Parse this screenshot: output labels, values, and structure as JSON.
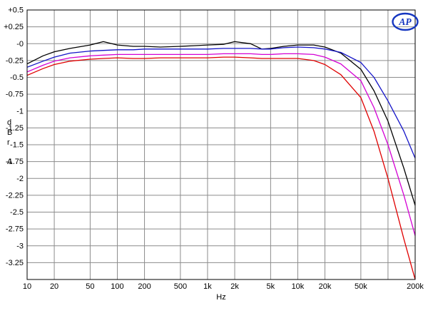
{
  "logo": {
    "text": "AP",
    "color": "#1536c0"
  },
  "chart_data": {
    "type": "line",
    "title": "",
    "xlabel": "Hz",
    "ylabel": "dBr A",
    "ylabel_stack": [
      "d",
      "B",
      "r",
      "A"
    ],
    "xscale": "log",
    "xlim": [
      10,
      200000
    ],
    "ylim": [
      -3.5,
      0.5
    ],
    "grid": true,
    "grid_color": "#8c8c8c",
    "frame_color": "#000000",
    "xticks": [
      {
        "f": 10,
        "label": "10"
      },
      {
        "f": 20,
        "label": "20"
      },
      {
        "f": 50,
        "label": "50"
      },
      {
        "f": 100,
        "label": "100"
      },
      {
        "f": 200,
        "label": "200"
      },
      {
        "f": 500,
        "label": "500"
      },
      {
        "f": 1000,
        "label": "1k"
      },
      {
        "f": 2000,
        "label": "2k"
      },
      {
        "f": 5000,
        "label": "5k"
      },
      {
        "f": 10000,
        "label": "10k"
      },
      {
        "f": 20000,
        "label": "20k"
      },
      {
        "f": 50000,
        "label": "50k"
      },
      {
        "f": 100000,
        "label": ""
      },
      {
        "f": 200000,
        "label": "200k"
      }
    ],
    "yticks": [
      {
        "v": 0.5,
        "label": "+0.5"
      },
      {
        "v": 0.25,
        "label": "+0.25"
      },
      {
        "v": 0,
        "label": "-0"
      },
      {
        "v": -0.25,
        "label": "-0.25"
      },
      {
        "v": -0.5,
        "label": "-0.5"
      },
      {
        "v": -0.75,
        "label": "-0.75"
      },
      {
        "v": -1,
        "label": "-1"
      },
      {
        "v": -1.25,
        "label": "-1.25"
      },
      {
        "v": -1.5,
        "label": "-1.5"
      },
      {
        "v": -1.75,
        "label": "-1.75"
      },
      {
        "v": -2,
        "label": "-2"
      },
      {
        "v": -2.25,
        "label": "-2.25"
      },
      {
        "v": -2.5,
        "label": "-2.5"
      },
      {
        "v": -2.75,
        "label": "-2.75"
      },
      {
        "v": -3,
        "label": "-3"
      },
      {
        "v": -3.25,
        "label": "-3.25"
      }
    ],
    "x": [
      10,
      15,
      20,
      30,
      50,
      70,
      100,
      150,
      200,
      300,
      500,
      700,
      1000,
      1500,
      2000,
      3000,
      4000,
      5000,
      7000,
      10000,
      15000,
      20000,
      30000,
      50000,
      70000,
      100000,
      150000,
      200000
    ],
    "series": [
      {
        "name": "black-trace",
        "color": "#000000",
        "values": [
          -0.3,
          -0.18,
          -0.12,
          -0.07,
          -0.02,
          0.03,
          -0.02,
          -0.04,
          -0.04,
          -0.05,
          -0.04,
          -0.03,
          -0.02,
          -0.01,
          0.03,
          0.0,
          -0.08,
          -0.07,
          -0.04,
          -0.02,
          -0.02,
          -0.05,
          -0.14,
          -0.38,
          -0.7,
          -1.15,
          -1.85,
          -2.4
        ]
      },
      {
        "name": "blue-trace",
        "color": "#1414c8",
        "values": [
          -0.35,
          -0.26,
          -0.2,
          -0.14,
          -0.11,
          -0.1,
          -0.09,
          -0.09,
          -0.08,
          -0.08,
          -0.08,
          -0.08,
          -0.08,
          -0.07,
          -0.07,
          -0.07,
          -0.08,
          -0.08,
          -0.06,
          -0.05,
          -0.06,
          -0.08,
          -0.13,
          -0.28,
          -0.5,
          -0.85,
          -1.3,
          -1.7
        ]
      },
      {
        "name": "magenta-trace",
        "color": "#d400d4",
        "values": [
          -0.42,
          -0.32,
          -0.26,
          -0.21,
          -0.18,
          -0.17,
          -0.16,
          -0.16,
          -0.16,
          -0.16,
          -0.16,
          -0.16,
          -0.16,
          -0.15,
          -0.15,
          -0.15,
          -0.16,
          -0.16,
          -0.15,
          -0.15,
          -0.16,
          -0.2,
          -0.3,
          -0.55,
          -0.95,
          -1.5,
          -2.25,
          -2.85
        ]
      },
      {
        "name": "red-trace",
        "color": "#e00000",
        "values": [
          -0.47,
          -0.37,
          -0.31,
          -0.26,
          -0.23,
          -0.22,
          -0.21,
          -0.22,
          -0.22,
          -0.21,
          -0.21,
          -0.21,
          -0.21,
          -0.2,
          -0.2,
          -0.21,
          -0.22,
          -0.22,
          -0.22,
          -0.22,
          -0.25,
          -0.31,
          -0.46,
          -0.8,
          -1.3,
          -2.0,
          -2.9,
          -3.5
        ]
      }
    ]
  }
}
